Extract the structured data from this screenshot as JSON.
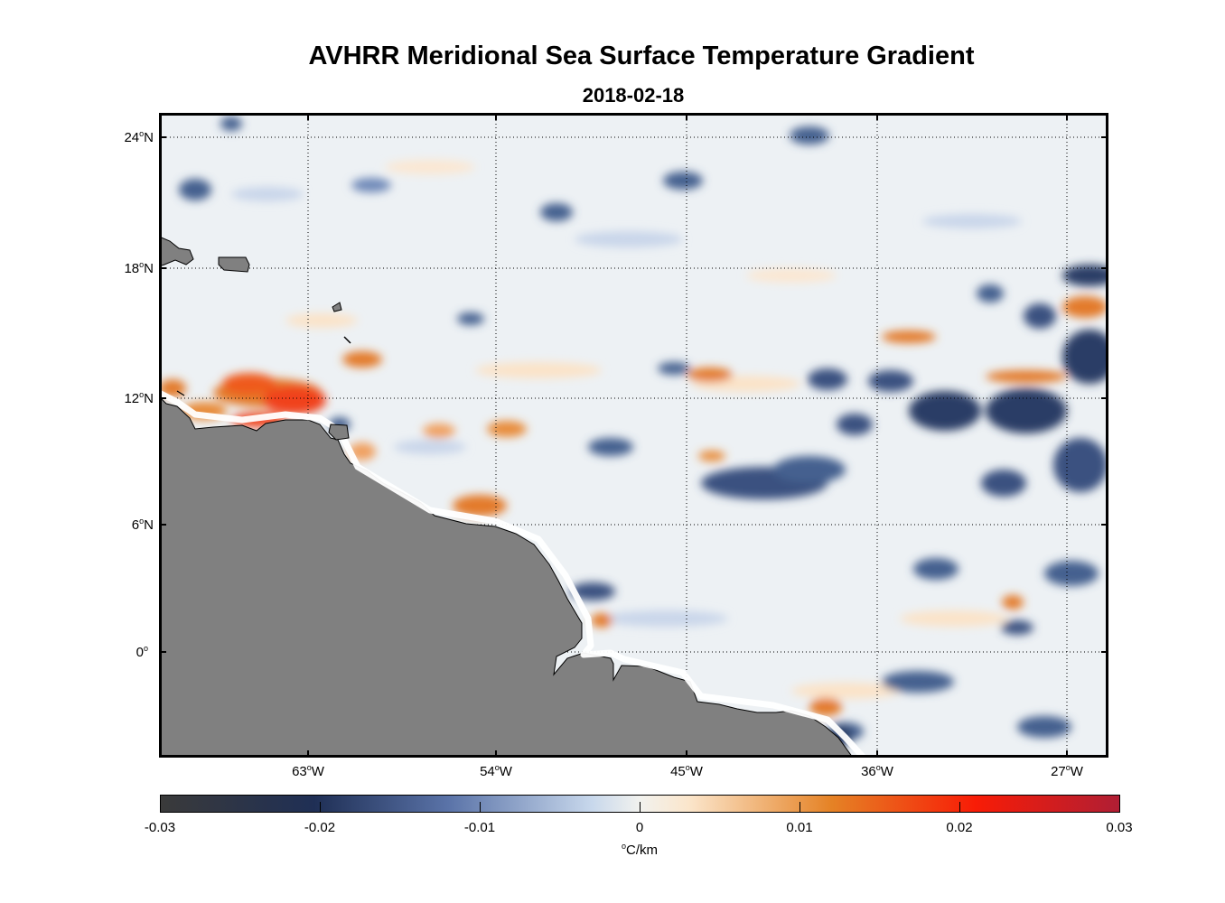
{
  "title": "AVHRR Meridional Sea Surface Temperature Gradient",
  "subtitle": "2018-02-18",
  "map": {
    "lat_labels": [
      "24",
      "18",
      "12",
      "6",
      "0"
    ],
    "lat_suffixes": [
      "N",
      "N",
      "N",
      "N",
      ""
    ],
    "lon_labels": [
      "63",
      "54",
      "45",
      "36",
      "27"
    ],
    "lon_suffix": "W",
    "degree_mark": "o",
    "land_color": "#808080",
    "frame_color": "#000000"
  },
  "colorbar": {
    "tick_labels": [
      "-0.03",
      "-0.02",
      "-0.01",
      "0",
      "0.01",
      "0.02",
      "0.03"
    ],
    "unit_degree": "o",
    "unit": "C/km",
    "colors": [
      "#3a3a3a",
      "#1f2f55",
      "#5a73a8",
      "#f2f2ee",
      "#e58225",
      "#f81c06",
      "#b01e34"
    ]
  }
}
